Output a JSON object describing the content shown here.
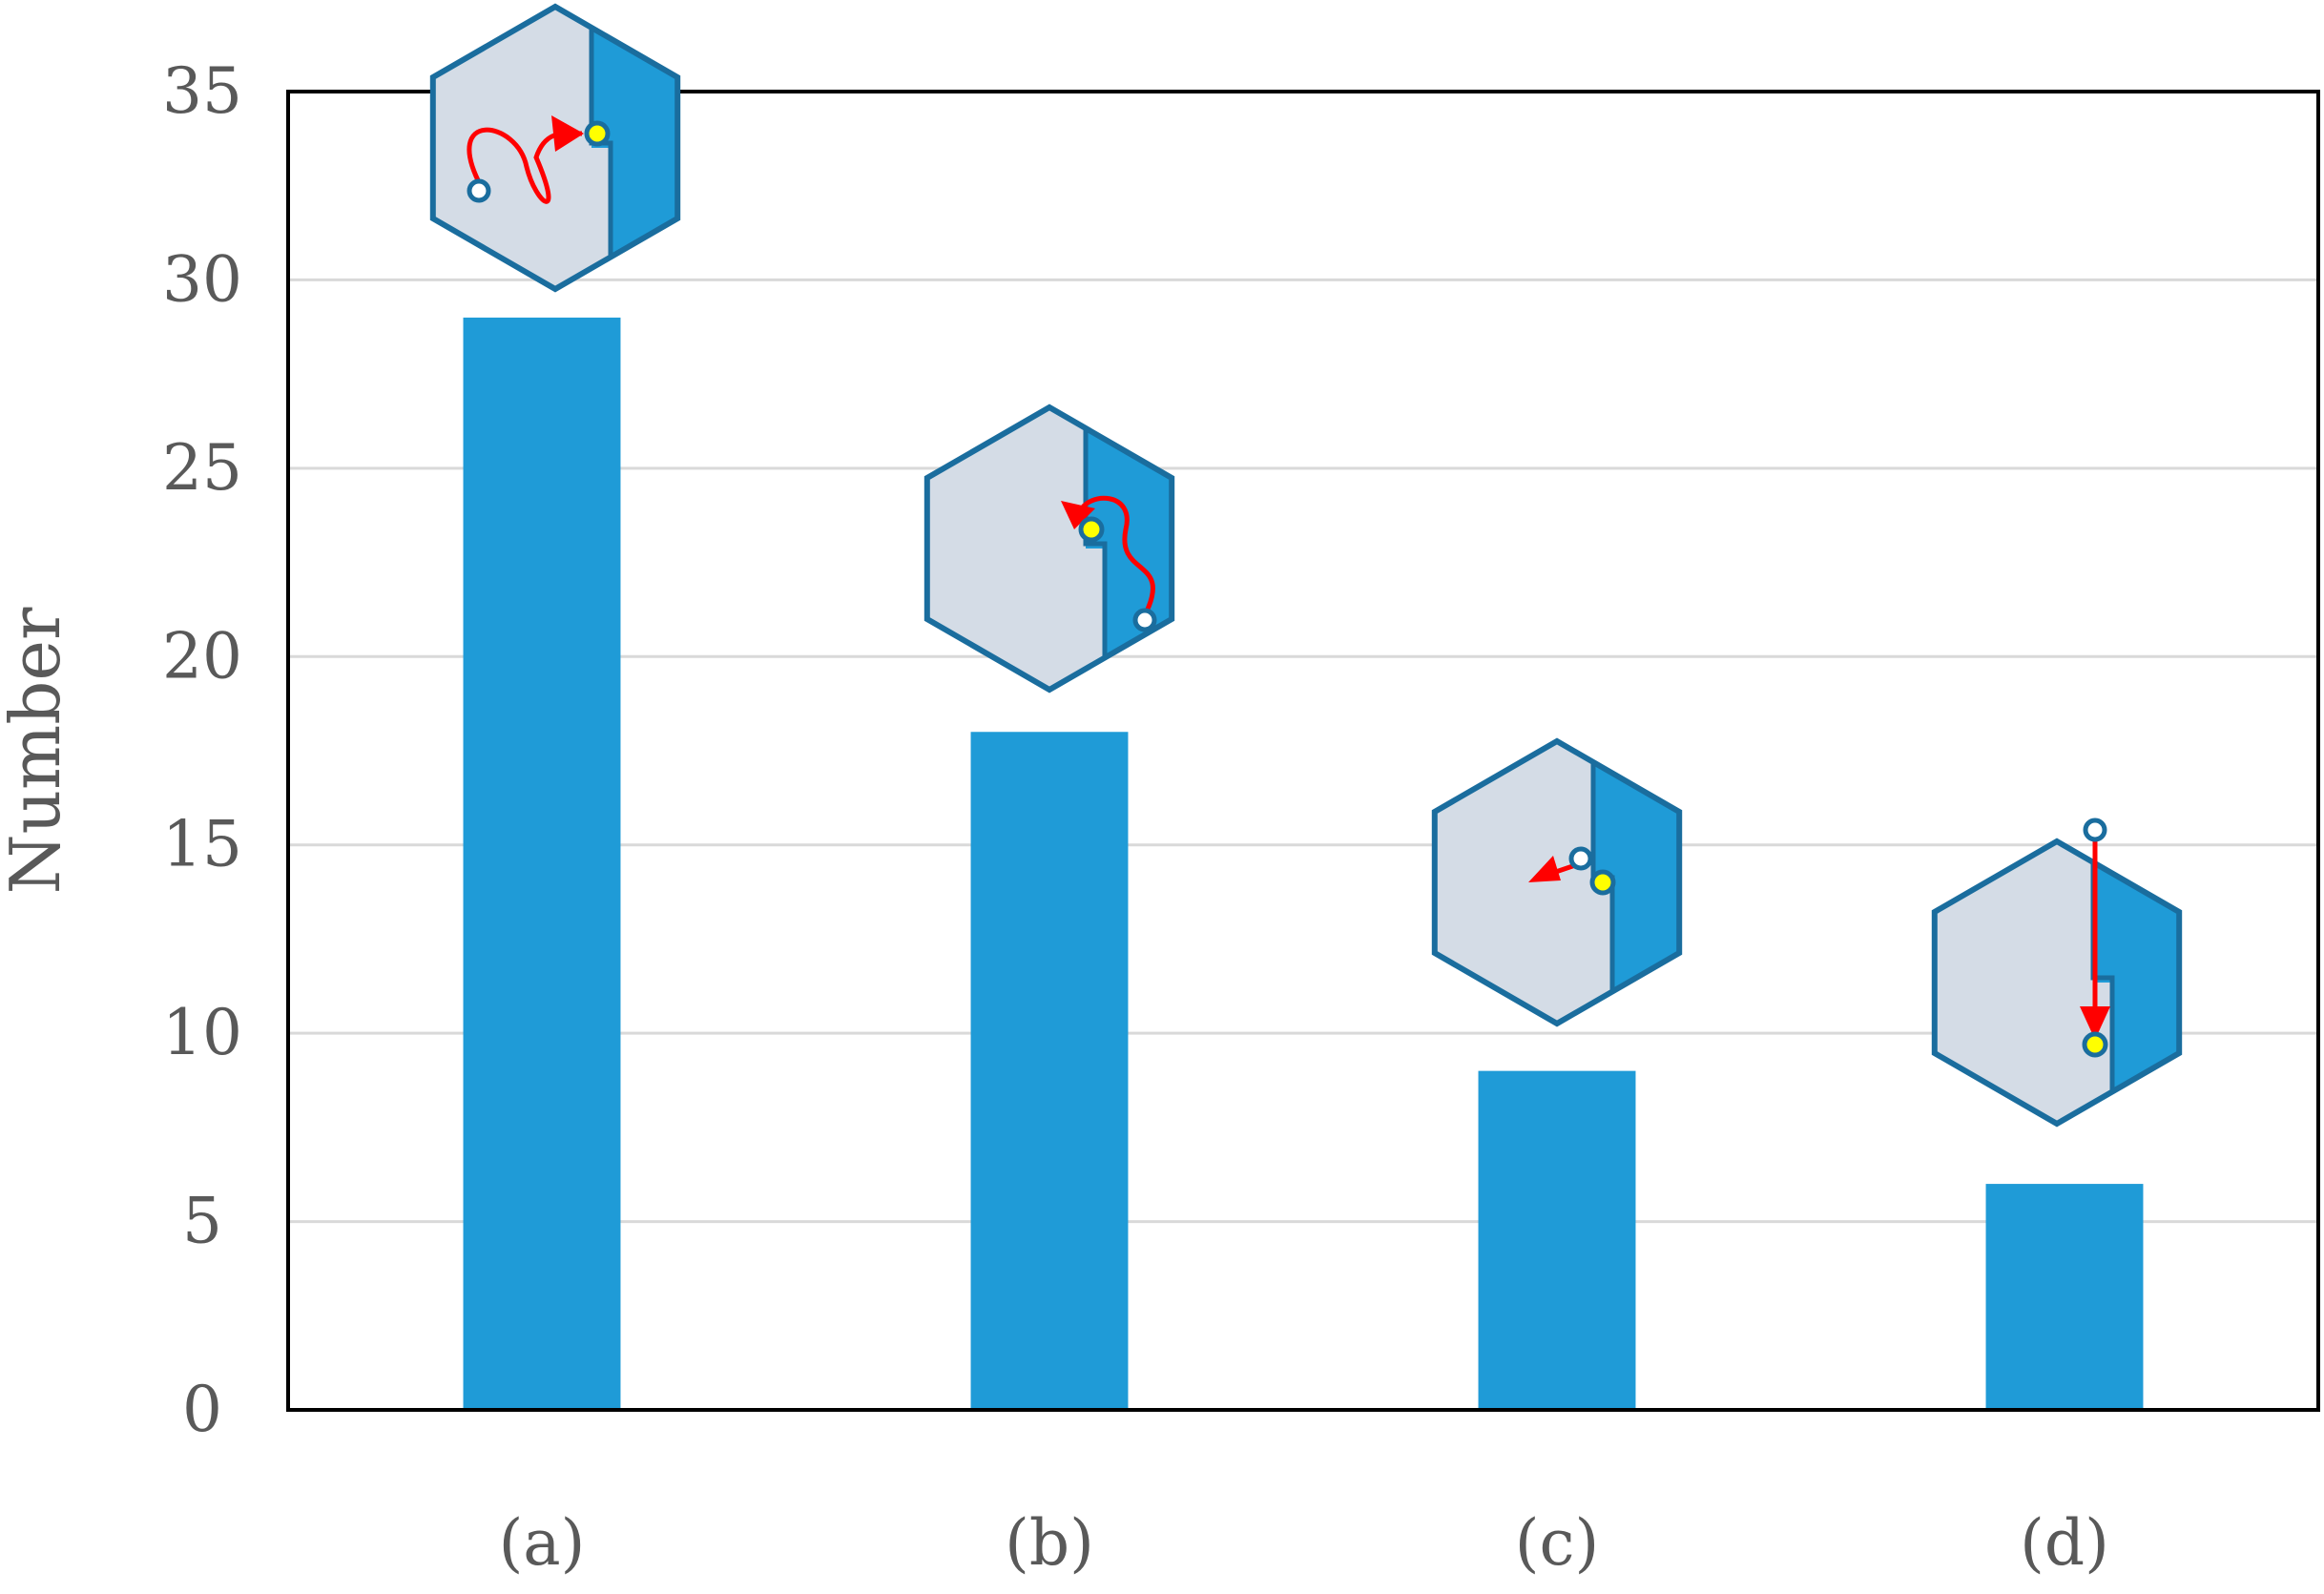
{
  "chart_data": {
    "type": "bar",
    "title": "",
    "xlabel": "",
    "ylabel": "Number",
    "categories": [
      "(a)",
      "(b)",
      "(c)",
      "(d)"
    ],
    "values": [
      29,
      18,
      9,
      6
    ],
    "ylim": [
      0,
      35
    ],
    "yticks": [
      0,
      5,
      10,
      15,
      20,
      25,
      30,
      35
    ],
    "grid": true,
    "bar_color": "#1f9bd7",
    "grid_color": "#d9d9d9",
    "annotations": [
      {
        "category": "(a)",
        "icon": "hexagon-with-curved-path-to-opening-icon"
      },
      {
        "category": "(b)",
        "icon": "hexagon-with-curved-path-inside-wall-icon"
      },
      {
        "category": "(c)",
        "icon": "hexagon-with-short-path-near-opening-icon"
      },
      {
        "category": "(d)",
        "icon": "hexagon-with-straight-path-from-outside-icon"
      }
    ]
  }
}
